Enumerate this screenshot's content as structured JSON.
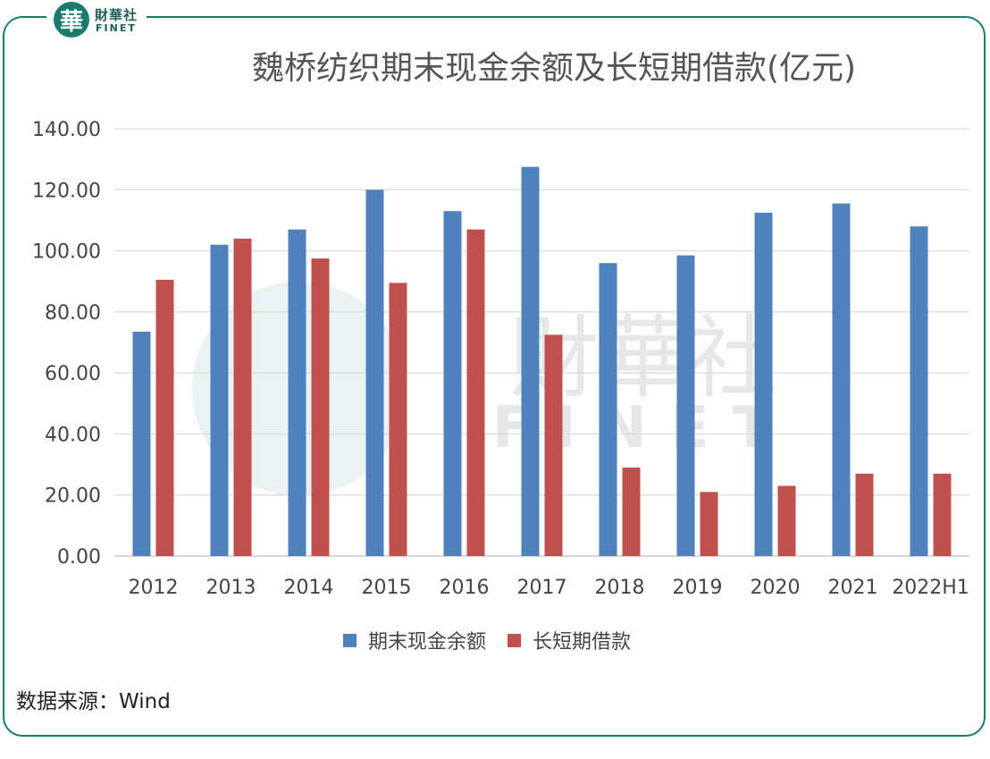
{
  "brand": {
    "logo_glyph": "華",
    "name_cn": "財華社",
    "name_en": "FINET",
    "frame_color": "#1f7a6e"
  },
  "watermark": {
    "icon": "finet-seal-icon",
    "text_cn": "財華社",
    "text_en": "FINET"
  },
  "source": "数据来源：Wind",
  "chart_data": {
    "type": "bar",
    "title": "魏桥纺织期末现金余额及长短期借款(亿元)",
    "xlabel": "",
    "ylabel": "",
    "categories": [
      "2012",
      "2013",
      "2014",
      "2015",
      "2016",
      "2017",
      "2018",
      "2019",
      "2020",
      "2021",
      "2022H1"
    ],
    "series": [
      {
        "name": "期末现金余额",
        "color": "#4f81bd",
        "values": [
          73.5,
          102.0,
          107.0,
          120.0,
          113.0,
          127.5,
          96.0,
          98.5,
          112.5,
          115.5,
          108.0
        ]
      },
      {
        "name": "长短期借款",
        "color": "#c0504d",
        "values": [
          90.5,
          104.0,
          97.5,
          89.5,
          107.0,
          72.5,
          29.0,
          21.0,
          23.0,
          27.0,
          27.0
        ]
      }
    ],
    "ylim": [
      0,
      140
    ],
    "yticks": [
      "0.00",
      "20.00",
      "40.00",
      "60.00",
      "80.00",
      "100.00",
      "120.00",
      "140.00"
    ],
    "grid": true,
    "legend_position": "bottom"
  }
}
